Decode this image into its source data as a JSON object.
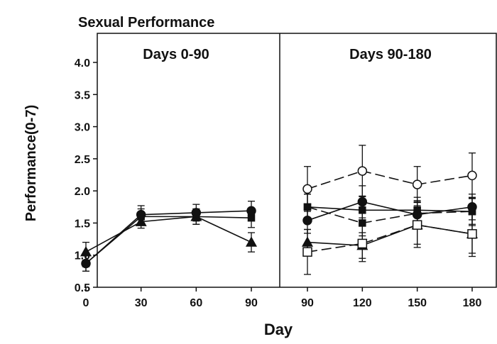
{
  "chart_data": {
    "type": "line",
    "title": "Sexual Performance",
    "xlabel": "Day",
    "ylabel": "Performance(0-7)",
    "ylim": [
      0.5,
      4.3
    ],
    "yticks": [
      "0.5",
      "1.0",
      "1.5",
      "2.0",
      "2.5",
      "3.0",
      "3.5",
      "4.0"
    ],
    "grid": false,
    "legend": "none",
    "panels": [
      {
        "label": "Days 0-90",
        "x": [
          0,
          30,
          60,
          90
        ],
        "xticks": [
          "0",
          "30",
          "60",
          "90"
        ],
        "series": [
          {
            "marker": "triangle-filled",
            "dashed": false,
            "values": [
              1.05,
              1.52,
              1.6,
              1.2
            ],
            "err": [
              0.15,
              0.1,
              0.12,
              0.15
            ]
          },
          {
            "marker": "square-filled",
            "dashed": false,
            "values": [
              0.87,
              1.6,
              1.6,
              1.58
            ],
            "err": [
              0.12,
              0.12,
              0.12,
              0.15
            ]
          },
          {
            "marker": "circle-filled",
            "dashed": false,
            "values": [
              0.87,
              1.63,
              1.66,
              1.69
            ],
            "err": [
              0.12,
              0.14,
              0.13,
              0.15
            ]
          }
        ]
      },
      {
        "label": "Days 90-180",
        "x": [
          90,
          120,
          150,
          180
        ],
        "xticks": [
          "90",
          "120",
          "150",
          "180"
        ],
        "series": [
          {
            "marker": "circle-open",
            "dashed": true,
            "values": [
              2.03,
              2.31,
              2.1,
              2.24
            ],
            "err": [
              0.35,
              0.4,
              0.28,
              0.35
            ]
          },
          {
            "marker": "square-filled",
            "dashed": false,
            "values": [
              1.75,
              1.7,
              1.7,
              1.68
            ],
            "err": [
              0.2,
              0.22,
              0.2,
              0.22
            ]
          },
          {
            "marker": "square-filled",
            "dashed": true,
            "values": [
              1.75,
              1.5,
              1.65,
              1.68
            ],
            "err": [
              0.2,
              0.2,
              0.2,
              0.2
            ]
          },
          {
            "marker": "circle-filled",
            "dashed": false,
            "values": [
              1.54,
              1.83,
              1.63,
              1.75
            ],
            "err": [
              0.2,
              0.25,
              0.2,
              0.2
            ]
          },
          {
            "marker": "triangle-filled",
            "dashed": false,
            "values": [
              1.2,
              1.15,
              1.47,
              1.33
            ],
            "err": [
              0.2,
              0.2,
              0.3,
              0.3
            ]
          },
          {
            "marker": "square-open",
            "dashed": true,
            "values": [
              1.05,
              1.18,
              1.47,
              1.33
            ],
            "err": [
              0.35,
              0.28,
              0.35,
              0.35
            ]
          }
        ]
      }
    ]
  }
}
